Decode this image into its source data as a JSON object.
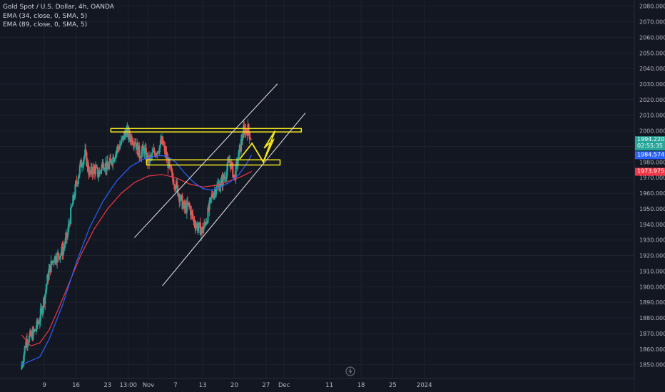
{
  "legend": {
    "symbol": "Gold Spot / U.S. Dollar, 4h, OANDA",
    "ema1": "EMA (34, close, 0, SMA, 5)",
    "ema2": "EMA (89, close, 0, SMA, 5)"
  },
  "colors": {
    "background": "#131722",
    "grid": "#1e222d",
    "up": "#26a69a",
    "down": "#ef5350",
    "ema34": "#2962ff",
    "ema89": "#f23645",
    "zone": "#f5e61e",
    "channel": "#e8e8e8"
  },
  "badges": {
    "price": "1994.220",
    "countdown": "02:55:35",
    "ema34": "1984.574",
    "ema89": "1973.975"
  },
  "chart_data": {
    "type": "candlestick",
    "y_axis": {
      "min": 1845,
      "max": 2082,
      "ticks": [
        "1850.000",
        "1860.000",
        "1870.000",
        "1880.000",
        "1890.000",
        "1900.000",
        "1910.000",
        "1920.000",
        "1930.000",
        "1940.000",
        "1950.000",
        "1960.000",
        "1970.000",
        "1980.000",
        "1990.000",
        "2000.000",
        "2010.000",
        "2020.000",
        "2030.000",
        "2040.000",
        "2050.000",
        "2060.000",
        "2070.000",
        "2080.000"
      ]
    },
    "x_axis": {
      "labels": [
        "9",
        "16",
        "23",
        "13:00",
        "Nov",
        "7",
        "13",
        "20",
        "27",
        "Dec",
        "11",
        "18",
        "25",
        "2024"
      ],
      "label_days": [
        9,
        16,
        23,
        27.54,
        32,
        38,
        44,
        51,
        58,
        62,
        72,
        79,
        86,
        93
      ]
    },
    "close_path": [
      [
        4,
        1850
      ],
      [
        5,
        1866
      ],
      [
        6,
        1868
      ],
      [
        7,
        1872
      ],
      [
        8,
        1880
      ],
      [
        9,
        1893
      ],
      [
        10,
        1910
      ],
      [
        11,
        1918
      ],
      [
        12,
        1920
      ],
      [
        13,
        1923
      ],
      [
        14,
        1932
      ],
      [
        15,
        1950
      ],
      [
        16,
        1965
      ],
      [
        17,
        1978
      ],
      [
        18,
        1985
      ],
      [
        19,
        1972
      ],
      [
        20,
        1976
      ],
      [
        21,
        1972
      ],
      [
        22,
        1980
      ],
      [
        23,
        1976
      ],
      [
        24,
        1982
      ],
      [
        25,
        1988
      ],
      [
        26,
        1992
      ],
      [
        27,
        2000
      ],
      [
        28,
        1996
      ],
      [
        29,
        1994
      ],
      [
        30,
        1985
      ],
      [
        31,
        1988
      ],
      [
        32,
        1980
      ],
      [
        33,
        1985
      ],
      [
        34,
        1988
      ],
      [
        35,
        1993
      ],
      [
        36,
        1983
      ],
      [
        37,
        1972
      ],
      [
        38,
        1966
      ],
      [
        39,
        1957
      ],
      [
        40,
        1950
      ],
      [
        41,
        1952
      ],
      [
        42,
        1942
      ],
      [
        43,
        1938
      ],
      [
        44,
        1936
      ],
      [
        45,
        1945
      ],
      [
        46,
        1958
      ],
      [
        47,
        1964
      ],
      [
        48,
        1966
      ],
      [
        49,
        1972
      ],
      [
        50,
        1981
      ],
      [
        51,
        1970
      ],
      [
        52,
        1985
      ],
      [
        53,
        2000
      ],
      [
        54,
        2001
      ],
      [
        54.8,
        1994.2
      ]
    ],
    "ema34": [
      [
        4,
        1850
      ],
      [
        8,
        1855
      ],
      [
        10,
        1866
      ],
      [
        13,
        1888
      ],
      [
        16,
        1915
      ],
      [
        19,
        1938
      ],
      [
        22,
        1955
      ],
      [
        25,
        1968
      ],
      [
        28,
        1977
      ],
      [
        31,
        1982
      ],
      [
        34,
        1984
      ],
      [
        36,
        1984
      ],
      [
        38,
        1980
      ],
      [
        40,
        1973
      ],
      [
        42,
        1967
      ],
      [
        44,
        1963
      ],
      [
        46,
        1962
      ],
      [
        48,
        1964
      ],
      [
        50,
        1967
      ],
      [
        52,
        1972
      ],
      [
        53.5,
        1978
      ],
      [
        54.8,
        1984.574
      ]
    ],
    "ema89": [
      [
        4,
        1869
      ],
      [
        6,
        1862
      ],
      [
        8,
        1864
      ],
      [
        10,
        1872
      ],
      [
        12,
        1885
      ],
      [
        14,
        1899
      ],
      [
        17,
        1920
      ],
      [
        20,
        1937
      ],
      [
        23,
        1950
      ],
      [
        26,
        1960
      ],
      [
        29,
        1967
      ],
      [
        32,
        1971
      ],
      [
        35,
        1972
      ],
      [
        38,
        1970
      ],
      [
        41,
        1966
      ],
      [
        44,
        1964
      ],
      [
        47,
        1965
      ],
      [
        50,
        1968
      ],
      [
        52,
        1970
      ],
      [
        53.5,
        1972
      ],
      [
        54.8,
        1973.975
      ]
    ],
    "resistance_zone": {
      "x1": 23.7,
      "x2": 65.8,
      "top": 2001.5,
      "bottom": 1999.3
    },
    "support_zone": {
      "x1": 31.6,
      "x2": 61.1,
      "top": 1981.4,
      "bottom": 1978.1
    },
    "channel_lines": [
      [
        [
          28.9,
          1931.5
        ],
        [
          60.5,
          2030.1
        ]
      ],
      [
        [
          35.1,
          1900.6
        ],
        [
          66.7,
          2011.5
        ]
      ]
    ],
    "projection": [
      [
        52.2,
        1982
      ],
      [
        54.9,
        1992
      ],
      [
        57.4,
        1980
      ],
      [
        59.6,
        1994
      ],
      [
        59.1,
        1993
      ],
      [
        57.6,
        1989
      ],
      [
        60.0,
        2000
      ],
      [
        57.4,
        1980
      ]
    ]
  }
}
